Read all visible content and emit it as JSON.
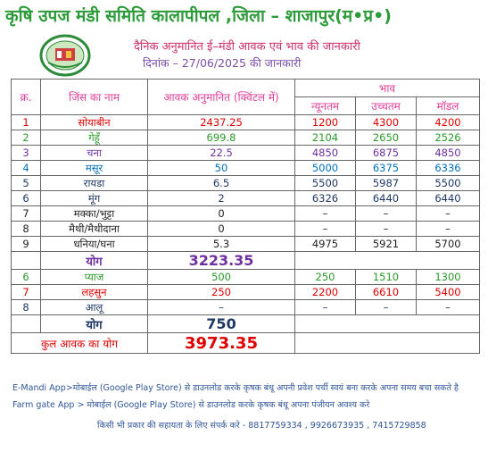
{
  "header": {
    "title": "कृषि उपज मंडी समिति कालापीपल ,जिला – शाजापुर(म•प्र•)",
    "subtitle": "दैनिक अनुमानित ई–मंडी आवक एवं भाव की जानकारी",
    "date_line": "दिनांक – 27/06/2025 की जानकारी"
  },
  "table": {
    "columns": {
      "serial": "क्र.",
      "name": "जिंस का नाम",
      "arrival": "आवक अनुमानित (क्विंटल में)",
      "price": "भाव",
      "min": "न्यूनतम",
      "max": "उच्चतम",
      "modal": "मॉडल"
    },
    "rows": [
      [
        1,
        "सोयाबीन",
        2437.25,
        1200,
        4300,
        4200
      ],
      [
        2,
        "गेहूँ",
        699.8,
        2104,
        2650,
        2526
      ],
      [
        3,
        "चना",
        22.5,
        4850,
        6875,
        4850
      ],
      [
        4,
        "मसूर",
        50,
        5000,
        6375,
        6336
      ],
      [
        5,
        "रायडा",
        6.5,
        5500,
        5987,
        5500
      ],
      [
        6,
        "मूंग",
        2,
        6326,
        6440,
        6440
      ],
      [
        7,
        "मक्का/भुट्टा",
        0,
        "–",
        "–",
        "–"
      ],
      [
        8,
        "मैथी/मैथीदाना",
        0,
        "–",
        "–",
        "–"
      ],
      [
        9,
        "धनिया/घना",
        5.3,
        4975,
        5921,
        5700
      ]
    ],
    "subtotal_1": {
      "label": "योग",
      "value": 3223.35
    },
    "rows_2": [
      [
        6,
        "प्याज",
        500,
        250,
        1510,
        1300
      ],
      [
        7,
        "लहसुन",
        250,
        2200,
        6610,
        5400
      ],
      [
        8,
        "आलू",
        "–",
        "–",
        "–",
        "–"
      ]
    ],
    "subtotal_2": {
      "label": "योग",
      "value": 750
    },
    "total": {
      "label": "कुल आवक का योग",
      "value": 3973.35
    }
  },
  "footer": {
    "notes": [
      "E-Mandi App>मोबाईल (Google Play Store) से डाउनलोड करके कृषक बंधू अपनी प्रवेश पर्ची स्वयं बना करके अपना समय बचा सकते है",
      "Farm gate App > मोबाईल (Google Play Store) से डाउनलोड करके कृषक बंधू अपना पंजीयन अवश्य करे",
      "किसी भी प्रकार की सहायता के लिए संपर्क करे - 8817759334 , 9926673935 , 7415729858"
    ]
  }
}
